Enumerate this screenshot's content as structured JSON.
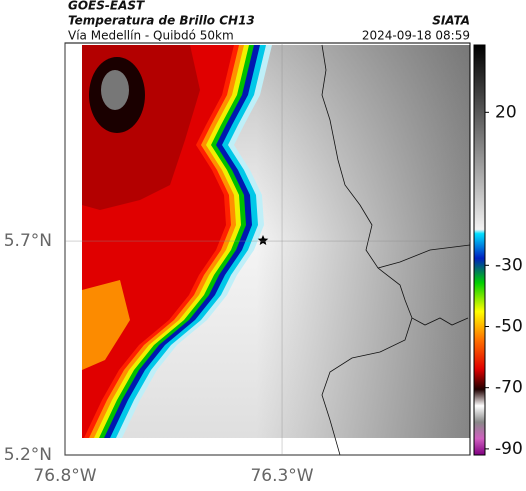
{
  "header": {
    "satellite": "GOES-EAST",
    "product": "Temperatura de Brillo CH13",
    "region": "Vía Medellín - Quibdó 50km",
    "source": "SIATA",
    "datetime": "2024-09-18 08:59"
  },
  "map": {
    "xlim": [
      -76.8,
      -75.867
    ],
    "ylim": [
      5.2,
      6.163
    ],
    "xticks": [
      {
        "value": -76.8,
        "label": "76.8°W"
      },
      {
        "value": -76.3,
        "label": "76.3°W"
      }
    ],
    "yticks": [
      {
        "value": 5.2,
        "label": "5.2°N"
      },
      {
        "value": 5.7,
        "label": "5.7°N"
      }
    ],
    "grid": true
  },
  "colorbar": {
    "lim": [
      -92,
      42
    ],
    "ticks": [
      20,
      -30,
      -50,
      -70,
      -90
    ]
  }
}
